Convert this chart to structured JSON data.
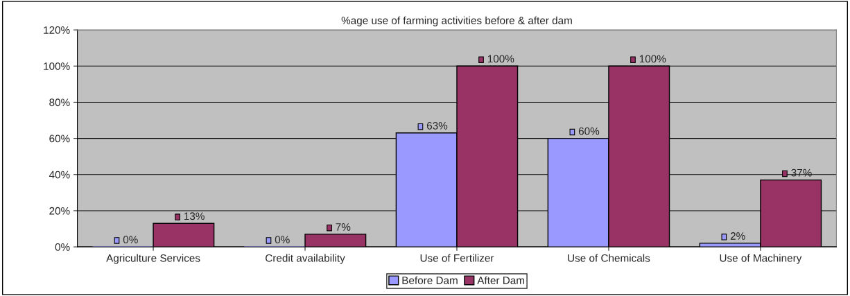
{
  "chart_data": {
    "type": "bar",
    "title": "%age use of farming activities before & after dam",
    "categories": [
      "Agriculture Services",
      "Credit availability",
      "Use of Fertilizer",
      "Use of Chemicals",
      "Use of Machinery"
    ],
    "series": [
      {
        "name": "Before Dam",
        "color": "#9999ff",
        "values": [
          0,
          0,
          63,
          60,
          2
        ],
        "value_labels": [
          "0%",
          "0%",
          "63%",
          "60%",
          "2%"
        ]
      },
      {
        "name": "After Dam",
        "color": "#993366",
        "values": [
          13,
          7,
          100,
          100,
          37
        ],
        "value_labels": [
          "13%",
          "7%",
          "100%",
          "100%",
          "37%"
        ]
      }
    ],
    "ylim": [
      0,
      120
    ],
    "yticks": [
      {
        "value": 0,
        "label": "0%"
      },
      {
        "value": 20,
        "label": "20%"
      },
      {
        "value": 40,
        "label": "40%"
      },
      {
        "value": 60,
        "label": "60%"
      },
      {
        "value": 80,
        "label": "80%"
      },
      {
        "value": 100,
        "label": "100%"
      },
      {
        "value": 120,
        "label": "120%"
      }
    ],
    "grid": "y",
    "legend": "bottom"
  }
}
